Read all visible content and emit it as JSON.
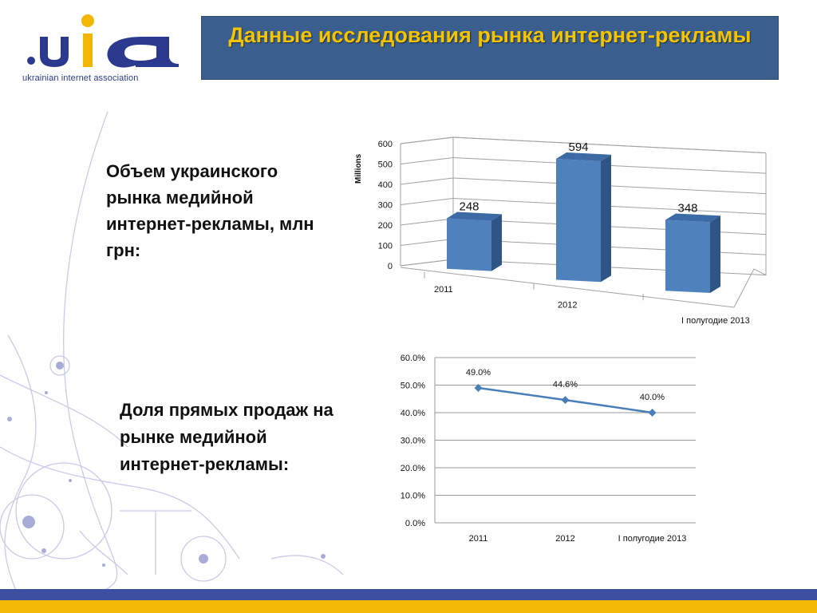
{
  "logo": {
    "mark": ".uia",
    "caption": "ukrainian internet association"
  },
  "slide": {
    "title": "Данные исследования рынка интернет-рекламы",
    "label1": "Объем украинского рынка медийной интернет-рекламы, млн грн:",
    "label2": "Доля прямых продаж на рынке медийной интернет-рекламы:"
  },
  "colors": {
    "title_bg": "#3a5f8f",
    "title_text": "#f5c400",
    "bar_front": "#4f81bd",
    "bar_side": "#2f5486",
    "bar_top": "#3b6aa4",
    "line": "#4a7ebb",
    "footer_blue": "#3c4fa1",
    "footer_gold": "#f2b705"
  },
  "chart_data": [
    {
      "type": "bar",
      "categories": [
        "2011",
        "2012",
        "I полугодие 2013"
      ],
      "values": [
        248,
        594,
        348
      ],
      "data_labels": [
        "248",
        "594",
        "348"
      ],
      "ylabel": "Millions",
      "ylim": [
        0,
        600
      ],
      "yticks": [
        "0",
        "100",
        "200",
        "300",
        "400",
        "500",
        "600"
      ],
      "grid": true,
      "style": "3d"
    },
    {
      "type": "line",
      "categories": [
        "2011",
        "2012",
        "I полугодие 2013"
      ],
      "values": [
        49.0,
        44.6,
        40.0
      ],
      "data_labels": [
        "49.0%",
        "44.6%",
        "40.0%"
      ],
      "ylim": [
        0,
        60
      ],
      "yticks": [
        "0.0%",
        "10.0%",
        "20.0%",
        "30.0%",
        "40.0%",
        "50.0%",
        "60.0%"
      ],
      "grid": true
    }
  ]
}
